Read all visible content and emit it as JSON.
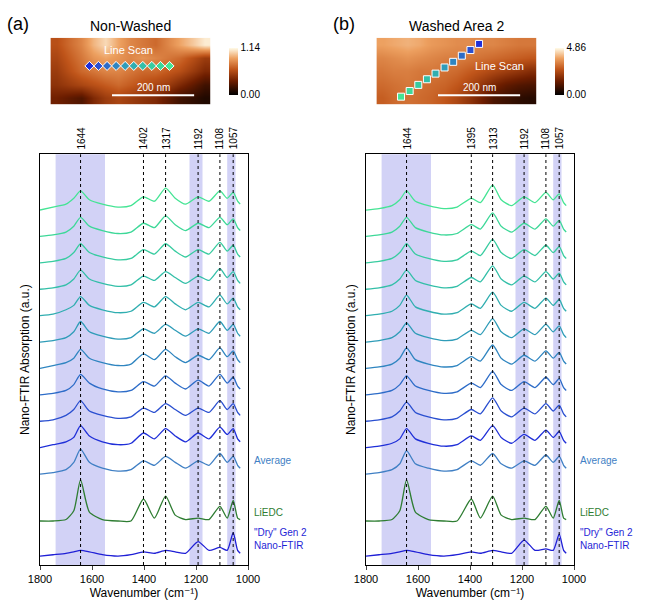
{
  "chart_data": [
    {
      "type": "line",
      "panel": "(a)",
      "title": "Non-Washed",
      "x_label": "Wavenumber (cm⁻¹)",
      "y_label": "Nano-FTIR Absorption (a.u.)",
      "xlim": [
        1800,
        1000
      ],
      "xticks": [
        1800,
        1600,
        1400,
        1200,
        1000
      ],
      "ylim": [
        0,
        14
      ],
      "yticks": [],
      "tick_labels": "x",
      "peaks": [
        1644,
        1402,
        1317,
        1192,
        1108,
        1057
      ],
      "bands": [
        [
          1740,
          1550
        ],
        [
          1225,
          1175
        ],
        [
          1080,
          1048
        ]
      ],
      "x": [
        1800,
        1750,
        1700,
        1670,
        1644,
        1610,
        1560,
        1500,
        1450,
        1402,
        1360,
        1317,
        1280,
        1240,
        1192,
        1150,
        1108,
        1080,
        1057,
        1040,
        1030
      ],
      "series": [
        {
          "color": "#1f2fd8",
          "values": [
            4.0,
            4.1,
            4.2,
            4.35,
            4.75,
            4.4,
            4.2,
            4.1,
            4.15,
            4.5,
            4.3,
            4.65,
            4.4,
            4.2,
            4.5,
            4.3,
            4.7,
            4.45,
            4.65,
            4.3,
            4.2
          ]
        },
        {
          "color": "#2a4fd0",
          "values": [
            4.9,
            4.95,
            5.1,
            5.3,
            5.6,
            5.25,
            5.1,
            5.0,
            5.05,
            5.35,
            5.2,
            5.5,
            5.3,
            5.1,
            5.35,
            5.2,
            5.6,
            5.3,
            5.5,
            5.2,
            5.1
          ]
        },
        {
          "color": "#2d6cc8",
          "values": [
            5.8,
            5.85,
            5.95,
            6.15,
            6.5,
            6.2,
            6.0,
            5.9,
            5.95,
            6.25,
            6.1,
            6.45,
            6.2,
            6.0,
            6.3,
            6.1,
            6.5,
            6.2,
            6.4,
            6.1,
            6.0
          ]
        },
        {
          "color": "#2f85c0",
          "values": [
            6.7,
            6.8,
            6.9,
            7.05,
            7.35,
            7.05,
            6.9,
            6.8,
            6.85,
            7.2,
            7.0,
            7.35,
            7.1,
            6.9,
            7.15,
            7.0,
            7.4,
            7.1,
            7.3,
            7.0,
            6.9
          ]
        },
        {
          "color": "#2f9cb8",
          "values": [
            7.6,
            7.65,
            7.75,
            7.95,
            8.3,
            7.95,
            7.8,
            7.7,
            7.75,
            8.05,
            7.9,
            8.2,
            8.0,
            7.8,
            8.05,
            7.9,
            8.3,
            8.0,
            8.2,
            7.9,
            7.8
          ]
        },
        {
          "color": "#30aeb0",
          "values": [
            8.5,
            8.55,
            8.7,
            8.85,
            9.15,
            8.85,
            8.7,
            8.6,
            8.65,
            8.95,
            8.8,
            9.15,
            8.9,
            8.7,
            8.95,
            8.8,
            9.2,
            8.9,
            9.1,
            8.8,
            8.7
          ]
        },
        {
          "color": "#33bfa8",
          "values": [
            9.4,
            9.45,
            9.55,
            9.75,
            10.05,
            9.75,
            9.6,
            9.5,
            9.55,
            9.85,
            9.7,
            10.0,
            9.8,
            9.6,
            9.85,
            9.7,
            10.1,
            9.8,
            10.0,
            9.7,
            9.6
          ]
        },
        {
          "color": "#38cca0",
          "values": [
            10.3,
            10.35,
            10.45,
            10.65,
            10.95,
            10.65,
            10.5,
            10.4,
            10.45,
            10.75,
            10.6,
            10.95,
            10.7,
            10.5,
            10.75,
            10.6,
            11.0,
            10.7,
            10.9,
            10.6,
            10.5
          ]
        },
        {
          "color": "#3dd898",
          "values": [
            11.2,
            11.25,
            11.35,
            11.55,
            11.85,
            11.55,
            11.4,
            11.3,
            11.35,
            11.65,
            11.5,
            11.9,
            11.6,
            11.4,
            11.65,
            11.5,
            11.85,
            11.6,
            11.8,
            11.5,
            11.4
          ]
        },
        {
          "color": "#44e494",
          "values": [
            12.1,
            12.2,
            12.3,
            12.5,
            12.75,
            12.45,
            12.3,
            12.2,
            12.25,
            12.55,
            12.4,
            12.85,
            12.5,
            12.3,
            12.55,
            12.4,
            12.75,
            12.5,
            12.7,
            12.4,
            12.3
          ]
        },
        {
          "name": "Average",
          "color": "#3f7fc4",
          "values": [
            3.1,
            3.15,
            3.25,
            3.5,
            3.95,
            3.5,
            3.3,
            3.2,
            3.25,
            3.55,
            3.4,
            3.7,
            3.5,
            3.3,
            3.55,
            3.4,
            3.8,
            3.5,
            3.7,
            3.4,
            3.3
          ]
        },
        {
          "name": "LiEDC",
          "color": "#2e7d32",
          "values": [
            1.5,
            1.5,
            1.55,
            1.85,
            2.9,
            1.8,
            1.55,
            1.5,
            1.5,
            2.25,
            1.6,
            2.35,
            1.7,
            1.55,
            1.6,
            1.55,
            2.0,
            1.6,
            2.2,
            1.6,
            1.55
          ]
        },
        {
          "name": "\"Dry\" Gen 2 Nano-FTIR",
          "color": "#1f1fd6",
          "values": [
            0.3,
            0.35,
            0.4,
            0.45,
            0.5,
            0.45,
            0.35,
            0.3,
            0.35,
            0.45,
            0.4,
            0.5,
            0.45,
            0.4,
            0.8,
            0.5,
            0.6,
            0.5,
            1.1,
            0.5,
            0.4
          ]
        }
      ],
      "image": {
        "xlim": [
          0,
          390
        ],
        "ylim": [
          0,
          130
        ],
        "x": [
          15,
          45,
          75,
          105,
          135,
          165,
          195,
          225,
          255,
          285,
          315,
          345,
          375
        ],
        "y": [
          13,
          39,
          65,
          91,
          117
        ],
        "z": [
          [
            0.35,
            0.3,
            0.25,
            0.4,
            0.5,
            0.55,
            0.5,
            0.45,
            0.4,
            0.3,
            0.2,
            0.15,
            0.1
          ],
          [
            0.45,
            0.5,
            0.55,
            0.6,
            0.65,
            0.7,
            0.65,
            0.6,
            0.55,
            0.5,
            0.4,
            0.3,
            0.2
          ],
          [
            0.5,
            0.6,
            0.7,
            0.75,
            0.8,
            0.8,
            0.75,
            0.7,
            0.7,
            0.65,
            0.6,
            0.5,
            0.4
          ],
          [
            0.55,
            0.65,
            0.75,
            0.85,
            0.9,
            0.85,
            0.8,
            0.85,
            0.8,
            0.75,
            0.7,
            0.6,
            0.5
          ],
          [
            0.6,
            0.7,
            0.8,
            0.95,
            1.05,
            0.9,
            0.8,
            0.75,
            0.7,
            0.8,
            0.9,
            1.0,
            1.1
          ]
        ],
        "zlim": [
          0,
          1.14
        ],
        "zticks": [
          {
            "value": 0,
            "label": "0.00"
          },
          1.14
        ],
        "markers": {
          "marker": "diamond",
          "x": [
            95,
            117,
            138,
            160,
            182,
            203,
            225,
            247,
            268,
            290
          ],
          "y": [
            75,
            75,
            75,
            75,
            75,
            75,
            75,
            75,
            75,
            75
          ],
          "colors": [
            "#1f2fd8",
            "#2a4fd0",
            "#2d6cc8",
            "#2f85c0",
            "#2f9cb8",
            "#30aeb0",
            "#33bfa8",
            "#38cca0",
            "#3dd898",
            "#44e494"
          ]
        },
        "line_scan_label": {
          "text": "Line Scan",
          "x": 190,
          "y": 90
        },
        "scale_bar": {
          "label": "200 nm",
          "x": [
            150,
            350
          ],
          "y": 18
        }
      }
    },
    {
      "type": "line",
      "panel": "(b)",
      "title": "Washed Area 2",
      "x_label": "Wavenumber (cm⁻¹)",
      "y_label": "Nano-FTIR Absorption (a.u.)",
      "xlim": [
        1800,
        1000
      ],
      "xticks": [
        1800,
        1600,
        1400,
        1200,
        1000
      ],
      "ylim": [
        0,
        14
      ],
      "yticks": [],
      "tick_labels": "x",
      "peaks": [
        1644,
        1395,
        1313,
        1192,
        1108,
        1057
      ],
      "bands": [
        [
          1740,
          1550
        ],
        [
          1225,
          1175
        ],
        [
          1080,
          1048
        ]
      ],
      "x": [
        1800,
        1750,
        1700,
        1670,
        1644,
        1610,
        1560,
        1500,
        1450,
        1395,
        1360,
        1313,
        1280,
        1240,
        1192,
        1150,
        1108,
        1080,
        1057,
        1040,
        1030
      ],
      "series": [
        {
          "color": "#1f2fd8",
          "values": [
            4.0,
            4.05,
            4.15,
            4.3,
            4.65,
            4.3,
            4.15,
            4.05,
            4.1,
            4.4,
            4.25,
            4.75,
            4.35,
            4.15,
            4.45,
            4.25,
            4.6,
            4.35,
            4.55,
            4.25,
            4.15
          ]
        },
        {
          "color": "#2a4fd0",
          "values": [
            4.9,
            4.95,
            5.05,
            5.25,
            5.55,
            5.2,
            5.05,
            4.95,
            5.0,
            5.3,
            5.15,
            5.7,
            5.25,
            5.05,
            5.35,
            5.15,
            5.5,
            5.25,
            5.45,
            5.15,
            5.05
          ]
        },
        {
          "color": "#2d6cc8",
          "values": [
            5.8,
            5.85,
            5.95,
            6.15,
            6.45,
            6.1,
            5.95,
            5.85,
            5.9,
            6.2,
            6.05,
            6.6,
            6.15,
            5.95,
            6.25,
            6.05,
            6.4,
            6.15,
            6.35,
            6.05,
            5.95
          ]
        },
        {
          "color": "#2f85c0",
          "values": [
            6.7,
            6.75,
            6.85,
            7.05,
            7.4,
            7.0,
            6.85,
            6.75,
            6.8,
            7.1,
            6.95,
            7.5,
            7.05,
            6.85,
            7.15,
            6.95,
            7.3,
            7.05,
            7.25,
            6.95,
            6.85
          ]
        },
        {
          "color": "#2f9cb8",
          "values": [
            7.6,
            7.65,
            7.75,
            7.95,
            8.25,
            7.9,
            7.75,
            7.65,
            7.7,
            8.0,
            7.85,
            8.4,
            7.95,
            7.75,
            8.05,
            7.85,
            8.2,
            7.95,
            8.15,
            7.85,
            7.75
          ]
        },
        {
          "color": "#30aeb0",
          "values": [
            8.5,
            8.55,
            8.65,
            8.85,
            9.2,
            8.8,
            8.65,
            8.55,
            8.6,
            8.9,
            8.75,
            9.3,
            8.85,
            8.65,
            8.95,
            8.75,
            9.1,
            8.85,
            9.05,
            8.75,
            8.65
          ]
        },
        {
          "color": "#33bfa8",
          "values": [
            9.4,
            9.45,
            9.55,
            9.75,
            10.05,
            9.7,
            9.55,
            9.45,
            9.5,
            9.8,
            9.65,
            10.2,
            9.75,
            9.55,
            9.85,
            9.65,
            10.0,
            9.75,
            9.95,
            9.65,
            9.55
          ]
        },
        {
          "color": "#38cca0",
          "values": [
            10.3,
            10.35,
            10.45,
            10.65,
            10.95,
            10.6,
            10.45,
            10.35,
            10.4,
            10.7,
            10.55,
            11.1,
            10.65,
            10.45,
            10.75,
            10.55,
            10.9,
            10.65,
            10.85,
            10.55,
            10.45
          ]
        },
        {
          "color": "#3dd898",
          "values": [
            11.2,
            11.25,
            11.35,
            11.55,
            11.85,
            11.5,
            11.35,
            11.25,
            11.3,
            11.6,
            11.45,
            12.0,
            11.55,
            11.35,
            11.65,
            11.45,
            11.8,
            11.55,
            11.75,
            11.45,
            11.35
          ]
        },
        {
          "color": "#44e494",
          "values": [
            12.1,
            12.15,
            12.25,
            12.45,
            12.75,
            12.4,
            12.25,
            12.15,
            12.2,
            12.5,
            12.35,
            12.95,
            12.45,
            12.25,
            12.55,
            12.35,
            12.7,
            12.45,
            12.65,
            12.35,
            12.25
          ]
        },
        {
          "name": "Average",
          "color": "#3f7fc4",
          "values": [
            3.1,
            3.15,
            3.25,
            3.45,
            3.9,
            3.45,
            3.3,
            3.2,
            3.25,
            3.55,
            3.4,
            3.8,
            3.45,
            3.3,
            3.55,
            3.4,
            3.75,
            3.5,
            3.7,
            3.4,
            3.3
          ]
        },
        {
          "name": "LiEDC",
          "color": "#2e7d32",
          "values": [
            1.5,
            1.5,
            1.55,
            1.85,
            2.9,
            1.8,
            1.55,
            1.5,
            1.5,
            2.25,
            1.6,
            2.35,
            1.7,
            1.55,
            1.6,
            1.55,
            2.0,
            1.6,
            2.2,
            1.6,
            1.55
          ]
        },
        {
          "name": "\"Dry\" Gen 2 Nano-FTIR",
          "color": "#1f1fd6",
          "values": [
            0.3,
            0.35,
            0.4,
            0.45,
            0.5,
            0.45,
            0.35,
            0.3,
            0.35,
            0.45,
            0.4,
            0.5,
            0.45,
            0.4,
            0.85,
            0.5,
            0.55,
            0.5,
            1.05,
            0.5,
            0.4
          ]
        }
      ],
      "image": {
        "xlim": [
          0,
          390
        ],
        "ylim": [
          0,
          130
        ],
        "x": [
          15,
          45,
          75,
          105,
          135,
          165,
          195,
          225,
          255,
          285,
          315,
          345,
          375
        ],
        "y": [
          13,
          39,
          65,
          91,
          117
        ],
        "z": [
          [
            2.8,
            3.0,
            3.1,
            3.0,
            2.9,
            2.7,
            2.4,
            2.0,
            1.5,
            1.0,
            0.8,
            0.6,
            0.5
          ],
          [
            3.0,
            3.1,
            3.2,
            3.1,
            3.0,
            2.9,
            2.7,
            2.4,
            2.0,
            1.6,
            1.3,
            1.1,
            1.0
          ],
          [
            3.2,
            3.3,
            3.3,
            3.2,
            3.2,
            3.1,
            3.0,
            2.8,
            2.6,
            2.4,
            2.2,
            2.0,
            1.8
          ],
          [
            3.4,
            3.5,
            3.6,
            3.5,
            3.4,
            3.3,
            3.3,
            3.2,
            3.1,
            3.0,
            2.9,
            2.8,
            2.7
          ],
          [
            3.8,
            3.9,
            4.0,
            3.9,
            3.7,
            3.6,
            3.5,
            3.5,
            3.4,
            3.4,
            3.3,
            3.2,
            3.2
          ]
        ],
        "zlim": [
          0,
          4.86
        ],
        "zticks": [
          {
            "value": 0,
            "label": "0.00"
          },
          4.86
        ],
        "markers": {
          "marker": "square",
          "x": [
            60,
            81,
            102,
            123,
            144,
            166,
            187,
            208,
            229,
            250
          ],
          "y": [
            15,
            26,
            38,
            49,
            60,
            72,
            83,
            95,
            106,
            118
          ],
          "colors": [
            "#44e494",
            "#3dd898",
            "#38cca0",
            "#33bfa8",
            "#30aeb0",
            "#2f9cb8",
            "#2f85c0",
            "#2d6cc8",
            "#2a4fd0",
            "#1f2fd8"
          ]
        },
        "line_scan_label": {
          "text": "Line Scan",
          "x": 300,
          "y": 60
        },
        "scale_bar": {
          "label": "200 nm",
          "x": [
            150,
            350
          ],
          "y": 18
        }
      }
    }
  ]
}
